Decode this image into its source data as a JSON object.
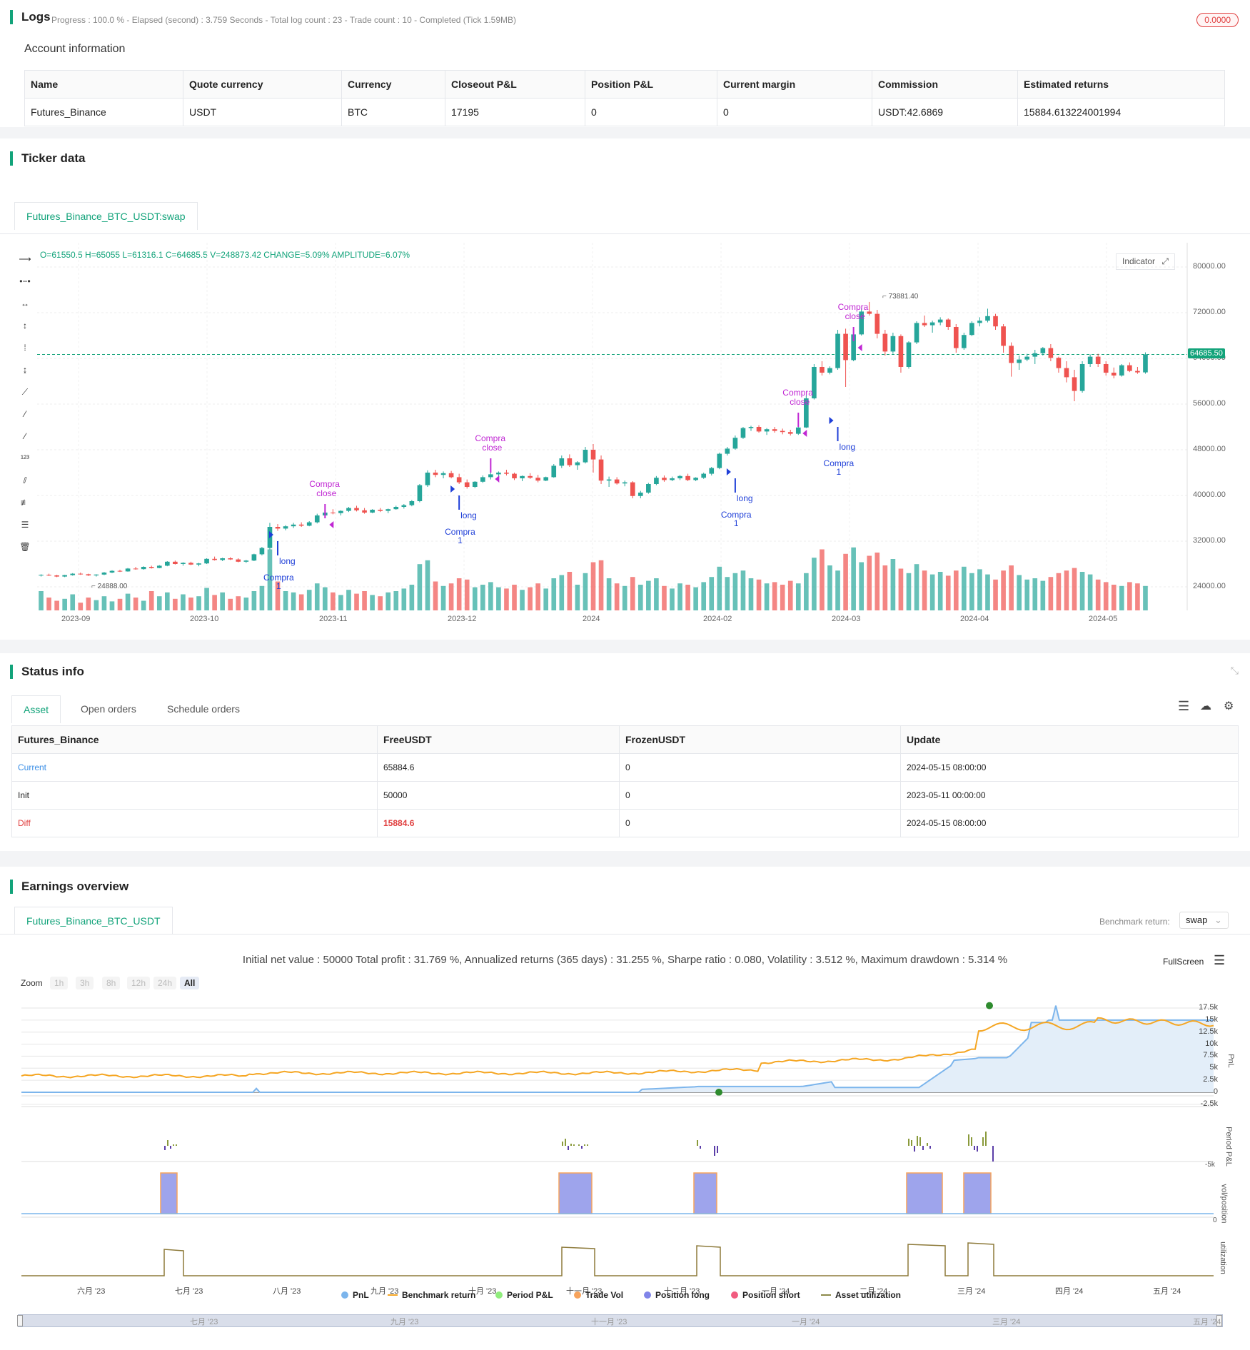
{
  "logs": {
    "title": "Logs",
    "subtitle": "Progress : 100.0 % - Elapsed (second) : 3.759  Seconds - Total log count : 23 - Trade count : 10 - Completed (Tick 1.59MB)",
    "badge": "0.0000",
    "account_title": "Account information",
    "columns": [
      "Name",
      "Quote currency",
      "Currency",
      "Closeout P&L",
      "Position P&L",
      "Current margin",
      "Commission",
      "Estimated returns"
    ],
    "row": [
      "Futures_Binance",
      "USDT",
      "BTC",
      "17195",
      "0",
      "0",
      "USDT:42.6869",
      "15884.613224001994"
    ]
  },
  "ticker": {
    "title": "Ticker data",
    "tab": "Futures_Binance_BTC_USDT:swap",
    "ohlc": "O=61550.5 H=65055 L=61316.1 C=64685.5 V=248873.42 CHANGE=5.09% AMPLITUDE=6.07%",
    "indicator_btn": "Indicator",
    "last_price": "64685.50",
    "high_label": "73881.40",
    "low_label": "24888.00",
    "y_ticks": [
      "80000.00",
      "72000.00",
      "64000.00",
      "56000.00",
      "48000.00",
      "40000.00",
      "32000.00",
      "24000.00"
    ],
    "x_ticks": [
      "2023-09",
      "2023-10",
      "2023-11",
      "2023-12",
      "2024",
      "2024-02",
      "2024-03",
      "2024-04",
      "2024-05"
    ],
    "annotations": [
      "Compra",
      "close",
      "long",
      "Compra",
      "1"
    ],
    "colors": {
      "up": "#26a69a",
      "down": "#ef5350",
      "long": "#1f3fd8",
      "close": "#c026d3"
    },
    "candles": [
      [
        26000,
        26200,
        25800,
        26100
      ],
      [
        26100,
        26300,
        25900,
        26000
      ],
      [
        26000,
        26100,
        25700,
        25800
      ],
      [
        25800,
        26100,
        25700,
        26050
      ],
      [
        26050,
        26400,
        25950,
        26300
      ],
      [
        26300,
        26500,
        26100,
        26200
      ],
      [
        26200,
        26300,
        25900,
        26000
      ],
      [
        26000,
        26200,
        25800,
        26150
      ],
      [
        26150,
        26600,
        26050,
        26500
      ],
      [
        26500,
        26900,
        26400,
        26800
      ],
      [
        26800,
        27000,
        26600,
        26700
      ],
      [
        26700,
        27300,
        26650,
        27200
      ],
      [
        27200,
        27500,
        27000,
        27100
      ],
      [
        27100,
        27600,
        27000,
        27500
      ],
      [
        27500,
        27700,
        27200,
        27300
      ],
      [
        27300,
        27800,
        27250,
        27700
      ],
      [
        27700,
        28500,
        27600,
        28400
      ],
      [
        28400,
        28600,
        27900,
        28000
      ],
      [
        28000,
        28300,
        27700,
        28200
      ],
      [
        28200,
        28400,
        27800,
        27900
      ],
      [
        27900,
        28200,
        27600,
        28100
      ],
      [
        28100,
        29000,
        28000,
        28900
      ],
      [
        28900,
        29300,
        28600,
        28700
      ],
      [
        28700,
        29100,
        28500,
        29000
      ],
      [
        29000,
        29200,
        28700,
        28800
      ],
      [
        28800,
        29000,
        28300,
        28400
      ],
      [
        28400,
        28700,
        28200,
        28600
      ],
      [
        28600,
        29800,
        28500,
        29700
      ],
      [
        29700,
        31000,
        29500,
        30800
      ],
      [
        30800,
        35200,
        30500,
        34500
      ],
      [
        34500,
        35000,
        33800,
        34200
      ],
      [
        34200,
        34800,
        33900,
        34600
      ],
      [
        34600,
        35200,
        34300,
        34900
      ],
      [
        34900,
        35300,
        34500,
        34700
      ],
      [
        34700,
        35500,
        34600,
        35300
      ],
      [
        35300,
        36800,
        35100,
        36500
      ],
      [
        36500,
        37200,
        36200,
        37000
      ],
      [
        37000,
        37600,
        36700,
        36900
      ],
      [
        36900,
        37400,
        36500,
        37300
      ],
      [
        37300,
        38000,
        37100,
        37800
      ],
      [
        37800,
        38200,
        37200,
        37400
      ],
      [
        37400,
        37800,
        36800,
        37000
      ],
      [
        37000,
        37600,
        36900,
        37500
      ],
      [
        37500,
        37800,
        37100,
        37300
      ],
      [
        37300,
        37700,
        36900,
        37600
      ],
      [
        37600,
        38200,
        37500,
        38000
      ],
      [
        38000,
        38500,
        37700,
        38300
      ],
      [
        38300,
        39200,
        38100,
        39000
      ],
      [
        39000,
        42000,
        38800,
        41800
      ],
      [
        41800,
        44400,
        41500,
        44000
      ],
      [
        44000,
        44500,
        43200,
        43600
      ],
      [
        43600,
        44200,
        43000,
        43900
      ],
      [
        43900,
        44300,
        43000,
        43200
      ],
      [
        43200,
        43800,
        42000,
        42300
      ],
      [
        42300,
        42800,
        41200,
        41500
      ],
      [
        41500,
        42500,
        41300,
        42400
      ],
      [
        42400,
        43500,
        42200,
        43200
      ],
      [
        43200,
        44000,
        42800,
        43700
      ],
      [
        43700,
        44200,
        43300,
        44000
      ],
      [
        44000,
        44500,
        43500,
        43800
      ],
      [
        43800,
        44000,
        42700,
        43000
      ],
      [
        43000,
        43500,
        42500,
        43400
      ],
      [
        43400,
        43900,
        42900,
        43100
      ],
      [
        43100,
        43600,
        42300,
        42600
      ],
      [
        42600,
        43300,
        42500,
        43200
      ],
      [
        43200,
        45500,
        43100,
        45200
      ],
      [
        45200,
        47000,
        44800,
        46500
      ],
      [
        46500,
        47200,
        45000,
        45300
      ],
      [
        45300,
        46000,
        44500,
        45800
      ],
      [
        45800,
        48500,
        45600,
        48000
      ],
      [
        48000,
        49000,
        44000,
        46300
      ],
      [
        46300,
        47000,
        42000,
        42600
      ],
      [
        42600,
        43300,
        41500,
        42800
      ],
      [
        42800,
        43200,
        41900,
        42100
      ],
      [
        42100,
        42600,
        41600,
        42300
      ],
      [
        42300,
        42500,
        39500,
        39900
      ],
      [
        39900,
        40800,
        39500,
        40500
      ],
      [
        40500,
        42200,
        40300,
        42000
      ],
      [
        42000,
        43400,
        41800,
        43100
      ],
      [
        43100,
        43500,
        42400,
        42700
      ],
      [
        42700,
        43300,
        42500,
        43000
      ],
      [
        43000,
        43600,
        42700,
        43400
      ],
      [
        43400,
        43800,
        42500,
        42700
      ],
      [
        42700,
        43200,
        42500,
        43100
      ],
      [
        43100,
        44000,
        42900,
        43800
      ],
      [
        43800,
        45000,
        43500,
        44800
      ],
      [
        44800,
        47500,
        44600,
        47300
      ],
      [
        47300,
        48500,
        47000,
        48200
      ],
      [
        48200,
        50500,
        48000,
        50100
      ],
      [
        50100,
        52000,
        49900,
        51800
      ],
      [
        51800,
        52200,
        51300,
        52000
      ],
      [
        52000,
        52300,
        51000,
        51200
      ],
      [
        51200,
        51800,
        50600,
        51600
      ],
      [
        51600,
        52000,
        51000,
        51300
      ],
      [
        51300,
        51700,
        50700,
        51100
      ],
      [
        51100,
        51500,
        50500,
        50800
      ],
      [
        50800,
        52000,
        50600,
        51900
      ],
      [
        51900,
        57500,
        51800,
        57000
      ],
      [
        57000,
        63000,
        56800,
        62500
      ],
      [
        62500,
        63500,
        61000,
        61500
      ],
      [
        61500,
        62600,
        61200,
        62300
      ],
      [
        62300,
        69000,
        62000,
        68300
      ],
      [
        68300,
        69200,
        59000,
        63700
      ],
      [
        63700,
        68500,
        63500,
        68200
      ],
      [
        68200,
        72800,
        68000,
        72200
      ],
      [
        72200,
        73881,
        71500,
        71800
      ],
      [
        71800,
        72500,
        67500,
        68300
      ],
      [
        68300,
        69000,
        64500,
        65200
      ],
      [
        65200,
        68500,
        64800,
        67900
      ],
      [
        67900,
        68200,
        61500,
        62500
      ],
      [
        62500,
        67000,
        62200,
        66800
      ],
      [
        66800,
        70500,
        66500,
        70200
      ],
      [
        70200,
        71500,
        69500,
        69800
      ],
      [
        69800,
        70600,
        68500,
        70300
      ],
      [
        70300,
        71200,
        69800,
        70800
      ],
      [
        70800,
        71000,
        69000,
        69500
      ],
      [
        69500,
        70000,
        65000,
        65800
      ],
      [
        65800,
        68500,
        65500,
        68100
      ],
      [
        68100,
        70500,
        67900,
        70200
      ],
      [
        70200,
        71200,
        69600,
        70600
      ],
      [
        70600,
        72700,
        70300,
        71400
      ],
      [
        71400,
        71800,
        69000,
        69600
      ],
      [
        69600,
        70000,
        65000,
        66200
      ],
      [
        66200,
        66800,
        60800,
        63200
      ],
      [
        63200,
        64500,
        62000,
        63800
      ],
      [
        63800,
        64800,
        63500,
        64300
      ],
      [
        64300,
        65500,
        63000,
        64900
      ],
      [
        64900,
        66000,
        64500,
        65800
      ],
      [
        65800,
        66500,
        63500,
        64100
      ],
      [
        64100,
        64300,
        61500,
        62300
      ],
      [
        62300,
        63500,
        59800,
        60700
      ],
      [
        60700,
        62000,
        56500,
        58300
      ],
      [
        58300,
        63500,
        58000,
        63000
      ],
      [
        63000,
        64700,
        62500,
        64300
      ],
      [
        64300,
        64800,
        62500,
        63000
      ],
      [
        63000,
        63500,
        61000,
        61500
      ],
      [
        61500,
        62400,
        60500,
        61000
      ],
      [
        61000,
        63000,
        60800,
        62800
      ],
      [
        62800,
        63300,
        61600,
        61800
      ],
      [
        61800,
        62500,
        61300,
        61550
      ],
      [
        61550,
        65055,
        61316.1,
        64685.5
      ]
    ],
    "volumes": [
      0.3,
      0.2,
      0.15,
      0.18,
      0.25,
      0.12,
      0.2,
      0.16,
      0.22,
      0.14,
      0.18,
      0.26,
      0.2,
      0.15,
      0.3,
      0.22,
      0.28,
      0.18,
      0.25,
      0.2,
      0.22,
      0.35,
      0.24,
      0.28,
      0.18,
      0.22,
      0.2,
      0.3,
      0.38,
      0.95,
      0.45,
      0.3,
      0.28,
      0.25,
      0.32,
      0.42,
      0.36,
      0.28,
      0.24,
      0.32,
      0.26,
      0.3,
      0.24,
      0.22,
      0.28,
      0.3,
      0.34,
      0.4,
      0.72,
      0.78,
      0.45,
      0.38,
      0.42,
      0.5,
      0.48,
      0.36,
      0.4,
      0.44,
      0.36,
      0.34,
      0.4,
      0.32,
      0.36,
      0.42,
      0.34,
      0.5,
      0.55,
      0.6,
      0.4,
      0.58,
      0.75,
      0.78,
      0.5,
      0.42,
      0.38,
      0.52,
      0.4,
      0.46,
      0.5,
      0.38,
      0.34,
      0.42,
      0.4,
      0.36,
      0.44,
      0.52,
      0.68,
      0.52,
      0.58,
      0.62,
      0.5,
      0.48,
      0.42,
      0.44,
      0.4,
      0.46,
      0.42,
      0.58,
      0.82,
      0.95,
      0.7,
      0.62,
      0.88,
      0.98,
      0.75,
      0.85,
      0.9,
      0.7,
      0.8,
      0.65,
      0.58,
      0.72,
      0.62,
      0.56,
      0.6,
      0.54,
      0.62,
      0.68,
      0.58,
      0.64,
      0.56,
      0.48,
      0.62,
      0.7,
      0.55,
      0.48,
      0.5,
      0.46,
      0.52,
      0.58,
      0.62,
      0.66,
      0.6,
      0.56,
      0.48,
      0.44,
      0.4,
      0.38,
      0.44,
      0.42,
      0.38,
      0.4
    ]
  },
  "status": {
    "title": "Status info",
    "tabs": [
      "Asset",
      "Open orders",
      "Schedule orders"
    ],
    "columns": [
      "Futures_Binance",
      "FreeUSDT",
      "FrozenUSDT",
      "Update"
    ],
    "rows": [
      [
        "Current",
        "65884.6",
        "0",
        "2024-05-15 08:00:00"
      ],
      [
        "Init",
        "50000",
        "0",
        "2023-05-11 00:00:00"
      ],
      [
        "Diff",
        "15884.6",
        "0",
        "2024-05-15 08:00:00"
      ]
    ]
  },
  "earnings": {
    "title": "Earnings overview",
    "tab": "Futures_Binance_BTC_USDT",
    "benchmark_label": "Benchmark return:",
    "benchmark_value": "swap",
    "summary": "Initial net value : 50000 Total profit : 31.769 %, Annualized returns (365 days) : 31.255 %, Sharpe ratio : 0.080, Volatility : 3.512 %, Maximum drawdown : 5.314 %",
    "fullscreen": "FullScreen",
    "zoom_label": "Zoom",
    "zoom_buttons": [
      "1h",
      "3h",
      "8h",
      "12h",
      "24h",
      "All"
    ],
    "pnl_ticks": [
      "17.5k",
      "15k",
      "12.5k",
      "10k",
      "7.5k",
      "5k",
      "2.5k",
      "0",
      "-2.5k"
    ],
    "period_ticks": [
      "-5k"
    ],
    "pos_ticks": [
      "0"
    ],
    "axis_titles": [
      "PnL",
      "Period P&L",
      "vol/position",
      "utilization"
    ],
    "x_ticks": [
      "六月 '23",
      "七月 '23",
      "八月 '23",
      "九月 '23",
      "十月 '23",
      "十一月 '23",
      "十二月 '23",
      "一月 '24",
      "二月 '24",
      "三月 '24",
      "四月 '24",
      "五月 '24"
    ],
    "nav_ticks": [
      "七月 '23",
      "九月 '23",
      "十一月 '23",
      "一月 '24",
      "三月 '24",
      "五月 '24"
    ],
    "legend": [
      {
        "label": "PnL",
        "color": "#7cb5ec"
      },
      {
        "label": "Benchmark return",
        "color": "#f5a623"
      },
      {
        "label": "Period P&L",
        "color": "#90ed7d"
      },
      {
        "label": "Trade Vol",
        "color": "#f7a35c"
      },
      {
        "label": "Position long",
        "color": "#8085e9"
      },
      {
        "label": "Position short",
        "color": "#f15c80"
      },
      {
        "label": "Asset utilization",
        "color": "#8d8a4a"
      }
    ]
  }
}
